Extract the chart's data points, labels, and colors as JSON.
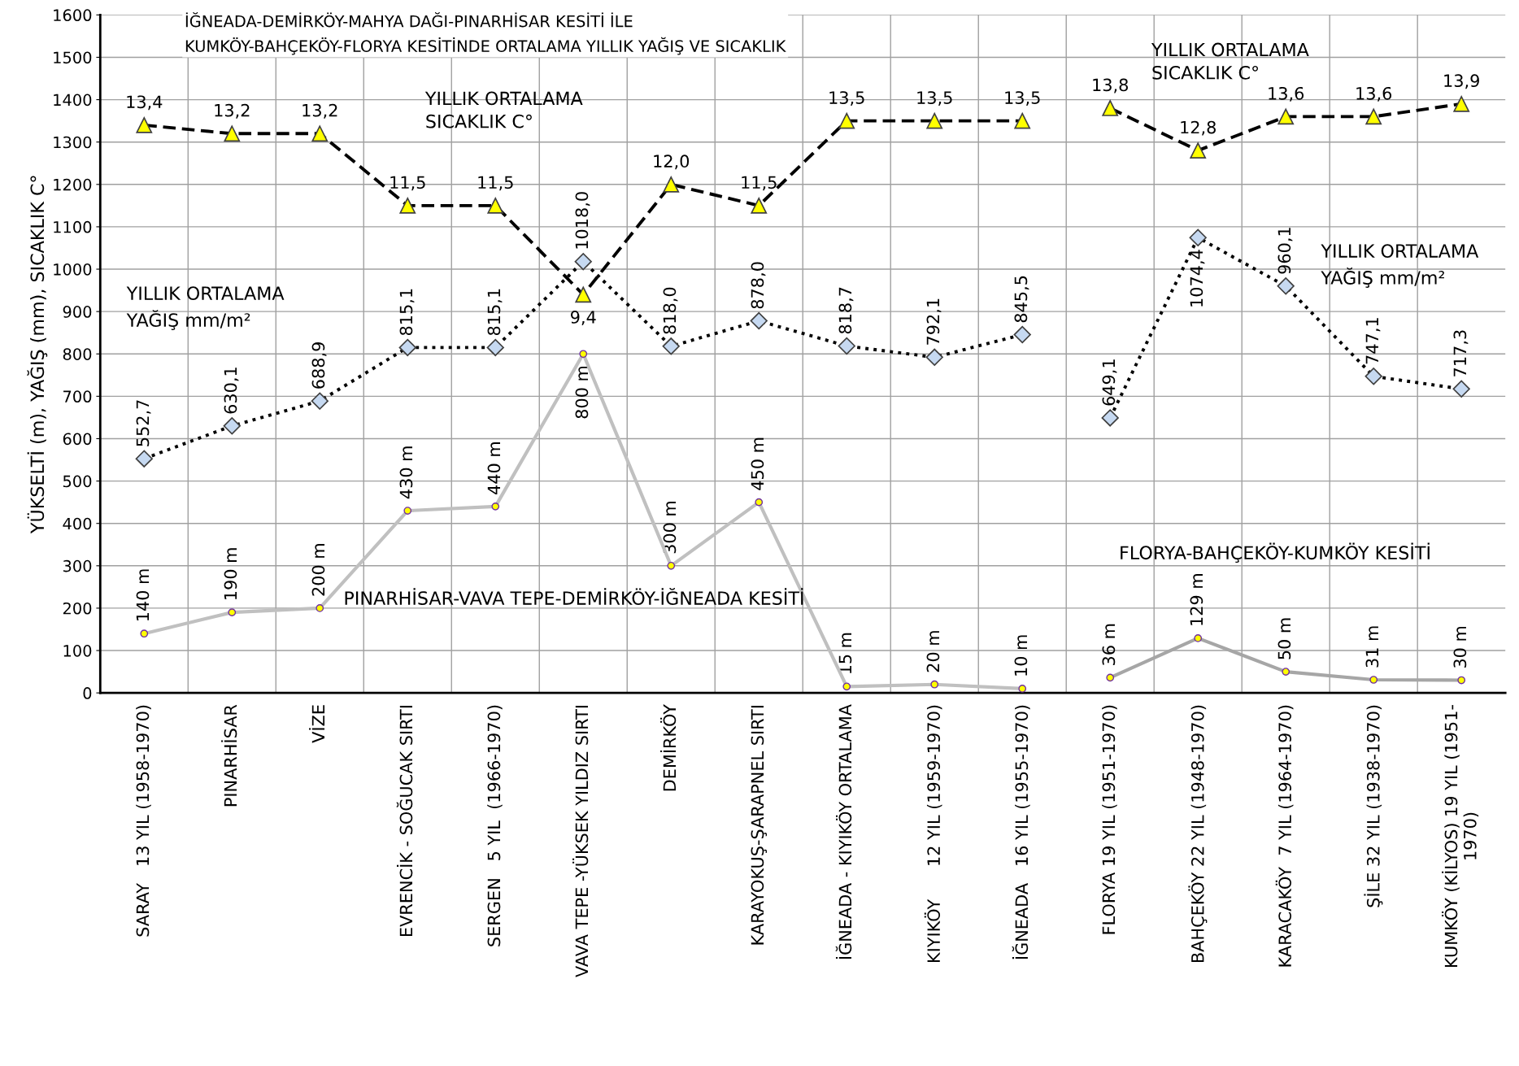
{
  "chart_data": {
    "type": "line",
    "title": "İĞNEADA-DEMİRKÖY-MAHYA DAĞI-PINARHİSAR KESİTİ İLE\nKUMKÖY-BAHÇEKÖY-FLORYA KESİTİNDE ORTALAMA YILLIK YAĞIŞ VE SICAKLIK",
    "ylabel": "YÜKSELTİ (m), YAĞIŞ (mm), SICAKLIK C°",
    "categories": [
      "SARAY   13 YIL (1958-1970)",
      "PINARHİSAR",
      "VİZE",
      "EVRENCİK - SOĞUCAK SIRTI",
      "SERGEN   5 YIL  (1966-1970)",
      "VAVA TEPE -YÜKSEK YILDIZ SIRTI",
      "DEMİRKÖY",
      "KARAYOKUŞ-ŞARAPNEL SIRTI",
      "İĞNEADA - KIYIKÖY ORTALAMA",
      "KIYIKÖY      12 YIL (1959-1970)",
      "İĞNEADA   16 YIL (1955-1970)",
      "FLORYA 19 YIL (1951-1970)",
      "BAHÇEKÖY 22 YIL (1948-1970)",
      "KARACAKÖY  7 YIL (1964-1970)",
      "ŞİLE 32 YIL (1938-1970)",
      "KUMKÖY (KİLYOS) 19 YIL (1951-\n1970)"
    ],
    "series": [
      {
        "axis": "y2",
        "color": "#000000",
        "colors": [
          "#ffff00",
          "#ffff00",
          "#ffff00",
          "#ffff00",
          "#ffff00",
          "#ffff00",
          "#ffff00",
          "#ffff00",
          "#ffff00",
          "#ffff00",
          "#ffff00",
          null,
          null,
          null,
          null,
          null
        ],
        "marker": "triangle",
        "line_style": "dashed",
        "values": [
          13.4,
          13.2,
          13.2,
          11.5,
          11.5,
          9.4,
          12.0,
          11.5,
          13.5,
          13.5,
          13.5,
          null,
          null,
          null,
          null,
          null
        ],
        "value_labels": [
          "13,4",
          "13,2",
          "13,2",
          "11,5",
          "11,5",
          "9,4",
          "12,0",
          "11,5",
          "13,5",
          "13,5",
          "13,5",
          null,
          null,
          null,
          null,
          null
        ]
      },
      {
        "axis": "y2",
        "color": "#000000",
        "colors": [
          null,
          null,
          null,
          null,
          null,
          null,
          null,
          null,
          null,
          null,
          null,
          "#ffff00",
          "#ffff00",
          "#ffff00",
          "#ffff00",
          "#ffff00"
        ],
        "marker": "triangle",
        "line_style": "dashed",
        "values": [
          null,
          null,
          null,
          null,
          null,
          null,
          null,
          null,
          null,
          null,
          null,
          13.8,
          12.8,
          13.6,
          13.6,
          13.9
        ],
        "value_labels": [
          null,
          null,
          null,
          null,
          null,
          null,
          null,
          null,
          null,
          null,
          null,
          "13,8",
          "12,8",
          "13,6",
          "13,6",
          "13,9"
        ]
      },
      {
        "color": "#000000",
        "colors": [
          "#c6d9f1",
          "#c6d9f1",
          "#c6d9f1",
          "#c6d9f1",
          "#c6d9f1",
          "#c6d9f1",
          "#c6d9f1",
          "#c6d9f1",
          "#c6d9f1",
          "#c6d9f1",
          "#c6d9f1",
          null,
          null,
          null,
          null,
          null
        ],
        "marker": "diamond",
        "line_style": "dotted",
        "values": [
          552.7,
          630.1,
          688.9,
          815.1,
          815.1,
          1018.0,
          818.0,
          878.0,
          818.7,
          792.1,
          845.5,
          null,
          null,
          null,
          null,
          null
        ],
        "value_labels": [
          "552,7",
          "630,1",
          "688,9",
          "815,1",
          "815,1",
          "1018,0",
          "818,0",
          "878,0",
          "818,7",
          "792,1",
          "845,5",
          null,
          null,
          null,
          null,
          null
        ]
      },
      {
        "color": "#000000",
        "colors": [
          null,
          null,
          null,
          null,
          null,
          null,
          null,
          null,
          null,
          null,
          null,
          "#c6d9f1",
          "#c6d9f1",
          "#c6d9f1",
          "#c6d9f1",
          "#c6d9f1"
        ],
        "marker": "diamond",
        "line_style": "dotted",
        "values": [
          null,
          null,
          null,
          null,
          null,
          null,
          null,
          null,
          null,
          null,
          null,
          649.1,
          1074.4,
          960.1,
          747.1,
          717.3
        ],
        "value_labels": [
          null,
          null,
          null,
          null,
          null,
          null,
          null,
          null,
          null,
          null,
          null,
          "649,1",
          "1074,4",
          "960,1",
          "747,1",
          "717,3"
        ]
      },
      {
        "color": "#c0c0c0",
        "colors": [
          "#ffff00",
          "#ffff00",
          "#ffff00",
          "#ffff00",
          "#ffff00",
          "#ffff00",
          "#ffff00",
          "#ffff00",
          "#ffff00",
          "#ffff00",
          "#ffff00",
          null,
          null,
          null,
          null,
          null
        ],
        "marker": "circle",
        "line_style": "solid",
        "values": [
          140,
          190,
          200,
          430,
          440,
          800,
          300,
          450,
          15,
          20,
          10,
          null,
          null,
          null,
          null,
          null
        ],
        "value_labels": [
          "140 m",
          "190 m",
          "200 m",
          "430 m",
          "440 m",
          "800 m",
          "300 m",
          "450 m",
          "15 m",
          "20 m",
          "10 m",
          null,
          null,
          null,
          null,
          null
        ]
      },
      {
        "color": "#a6a6a6",
        "colors": [
          null,
          null,
          null,
          null,
          null,
          null,
          null,
          null,
          null,
          null,
          null,
          "#ffff00",
          "#ffff00",
          "#ffff00",
          "#ffff00",
          "#ffff00"
        ],
        "marker": "circle",
        "line_style": "solid",
        "values": [
          null,
          null,
          null,
          null,
          null,
          null,
          null,
          null,
          null,
          null,
          null,
          36,
          129,
          50,
          31,
          30
        ],
        "value_labels": [
          null,
          null,
          null,
          null,
          null,
          null,
          null,
          null,
          null,
          null,
          null,
          "36 m",
          "129 m",
          "50 m",
          "31 m",
          "30 m"
        ]
      }
    ],
    "annotations": [
      "YILLIK ORTALAMA\nSICAKLIK C°",
      "YILLIK ORTALAMA\nYAĞIŞ mm/m²",
      "YILLIK ORTALAMA\nSICAKLIK C°",
      "YILLIK ORTALAMA\nYAĞIŞ mm/m²",
      "PINARHİSAR-VAVA TEPE-DEMİRKÖY-İĞNEADA KESİTİ",
      "FLORYA-BAHÇEKÖY-KUMKÖY KESİTİ"
    ],
    "ylim": [
      0,
      1600
    ],
    "yticks": [
      0,
      100,
      200,
      300,
      400,
      500,
      600,
      700,
      800,
      900,
      1000,
      1100,
      1200,
      1300,
      1400,
      1500,
      1600
    ],
    "y2lim": [
      0,
      16
    ],
    "grid": true,
    "legend": false
  }
}
